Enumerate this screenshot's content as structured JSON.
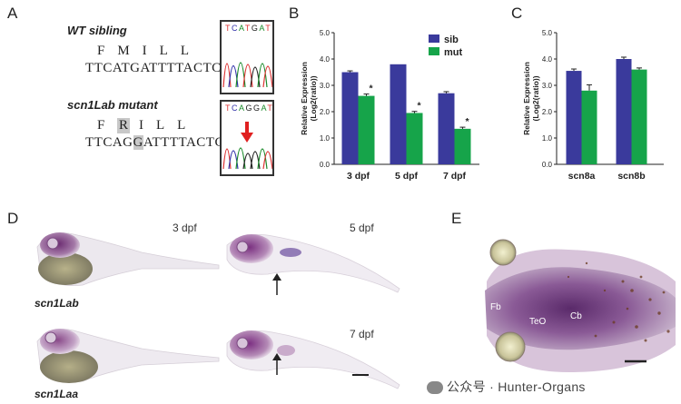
{
  "panels": {
    "A": "A",
    "B": "B",
    "C": "C",
    "D": "D",
    "E": "E"
  },
  "panelA": {
    "wt_title": "WT sibling",
    "wt_aa": "FMILL",
    "wt_nt": "TTCATGATTTTACTC",
    "wt_chrom_bases": "TCATGAT",
    "mut_title": "scn1Lab mutant",
    "mut_aa_pre": "F",
    "mut_aa_hl": "R",
    "mut_aa_post": "ILL",
    "mut_nt_pre": "TTCAG",
    "mut_nt_hl": "G",
    "mut_nt_post": "ATTTTACTC",
    "mut_chrom_bases": "TCAGGAT"
  },
  "chart_data": [
    {
      "type": "bar",
      "panel": "B",
      "categories": [
        "3 dpf",
        "5 dpf",
        "7 dpf"
      ],
      "series": [
        {
          "name": "sib",
          "color": "#3a3a9c",
          "values": [
            3.5,
            3.8,
            2.7
          ],
          "errors": [
            0.05,
            0.0,
            0.06
          ]
        },
        {
          "name": "mut",
          "color": "#16a44a",
          "values": [
            2.6,
            1.95,
            1.35
          ],
          "errors": [
            0.07,
            0.06,
            0.06
          ]
        }
      ],
      "significance": [
        "*",
        "*",
        "*"
      ],
      "ylabel_line1": "Relative Expression",
      "ylabel_line2": "(Log2(ratio))",
      "ylim": [
        0,
        5
      ],
      "yticks": [
        "0.0",
        "1.0",
        "2.0",
        "3.0",
        "4.0",
        "5.0"
      ],
      "yticks_values": [
        0,
        1,
        2,
        3,
        4,
        5
      ]
    },
    {
      "type": "bar",
      "panel": "C",
      "categories": [
        "scn8a",
        "scn8b"
      ],
      "series": [
        {
          "name": "sib",
          "color": "#3a3a9c",
          "values": [
            3.55,
            4.0
          ],
          "errors": [
            0.07,
            0.07
          ]
        },
        {
          "name": "mut",
          "color": "#16a44a",
          "values": [
            2.8,
            3.6
          ],
          "errors": [
            0.22,
            0.06
          ]
        }
      ],
      "ylabel_line1": "Relative Expression",
      "ylabel_line2": "(Log2(ratio))",
      "ylim": [
        0,
        5
      ],
      "yticks": [
        "0.0",
        "1.0",
        "2.0",
        "3.0",
        "4.0",
        "5.0"
      ],
      "yticks_values": [
        0,
        1,
        2,
        3,
        4,
        5
      ]
    }
  ],
  "legend": {
    "sib": "sib",
    "mut": "mut"
  },
  "panelD": {
    "label_3dpf": "3 dpf",
    "label_5dpf": "5 dpf",
    "label_7dpf": "7 dpf",
    "row1": "scn1Lab",
    "row2": "scn1Laa"
  },
  "panelE": {
    "fb": "Fb",
    "teo": "TeO",
    "cb": "Cb"
  },
  "watermark": "公众号 · Hunter-Organs"
}
